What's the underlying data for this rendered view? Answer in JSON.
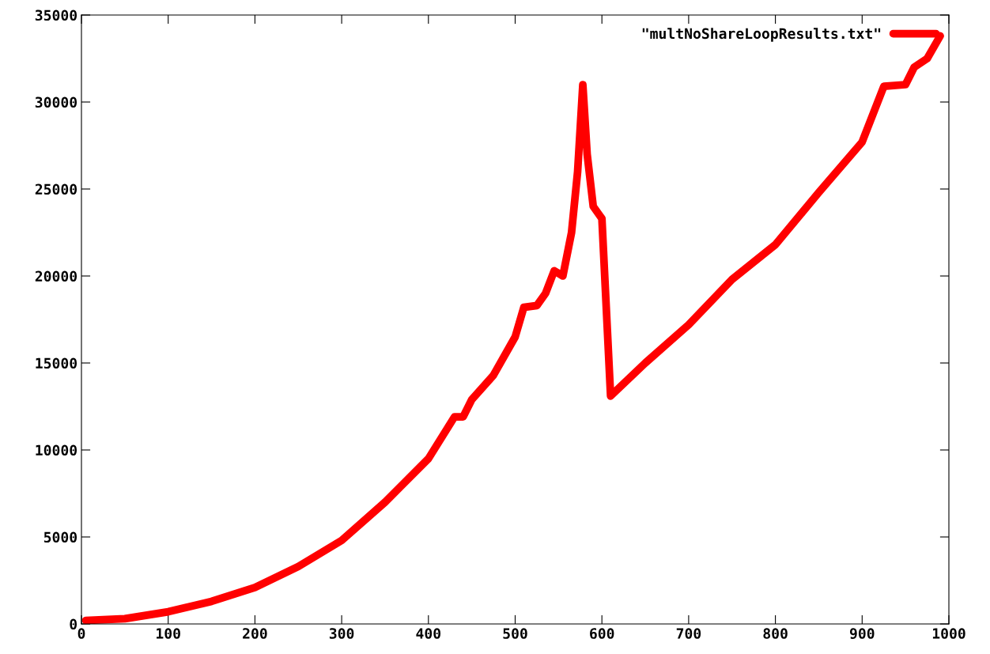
{
  "chart_data": {
    "type": "line",
    "xlim": [
      0,
      1000
    ],
    "ylim": [
      0,
      35000
    ],
    "xticks": [
      0,
      100,
      200,
      300,
      400,
      500,
      600,
      700,
      800,
      900,
      1000
    ],
    "yticks": [
      0,
      5000,
      10000,
      15000,
      20000,
      25000,
      30000,
      35000
    ],
    "grid": false,
    "legend": "top right",
    "marker": "none",
    "line_style": "solid",
    "series": [
      {
        "name": "\"multNoShareLoopResults.txt\"",
        "color": "#ff0000",
        "x": [
          5,
          50,
          100,
          150,
          200,
          250,
          300,
          350,
          400,
          430,
          440,
          450,
          475,
          500,
          510,
          525,
          535,
          545,
          555,
          565,
          572,
          578,
          583,
          590,
          600,
          610,
          650,
          700,
          750,
          800,
          850,
          900,
          925,
          950,
          960,
          975,
          990
        ],
        "values": [
          200,
          300,
          700,
          1300,
          2100,
          3300,
          4800,
          7000,
          9500,
          11900,
          11900,
          12900,
          14300,
          16500,
          18200,
          18300,
          19000,
          20300,
          20000,
          22500,
          26000,
          31000,
          27000,
          24000,
          23300,
          13100,
          15000,
          17200,
          19800,
          21800,
          24800,
          27700,
          30900,
          31000,
          32000,
          32500,
          33800
        ]
      }
    ]
  }
}
